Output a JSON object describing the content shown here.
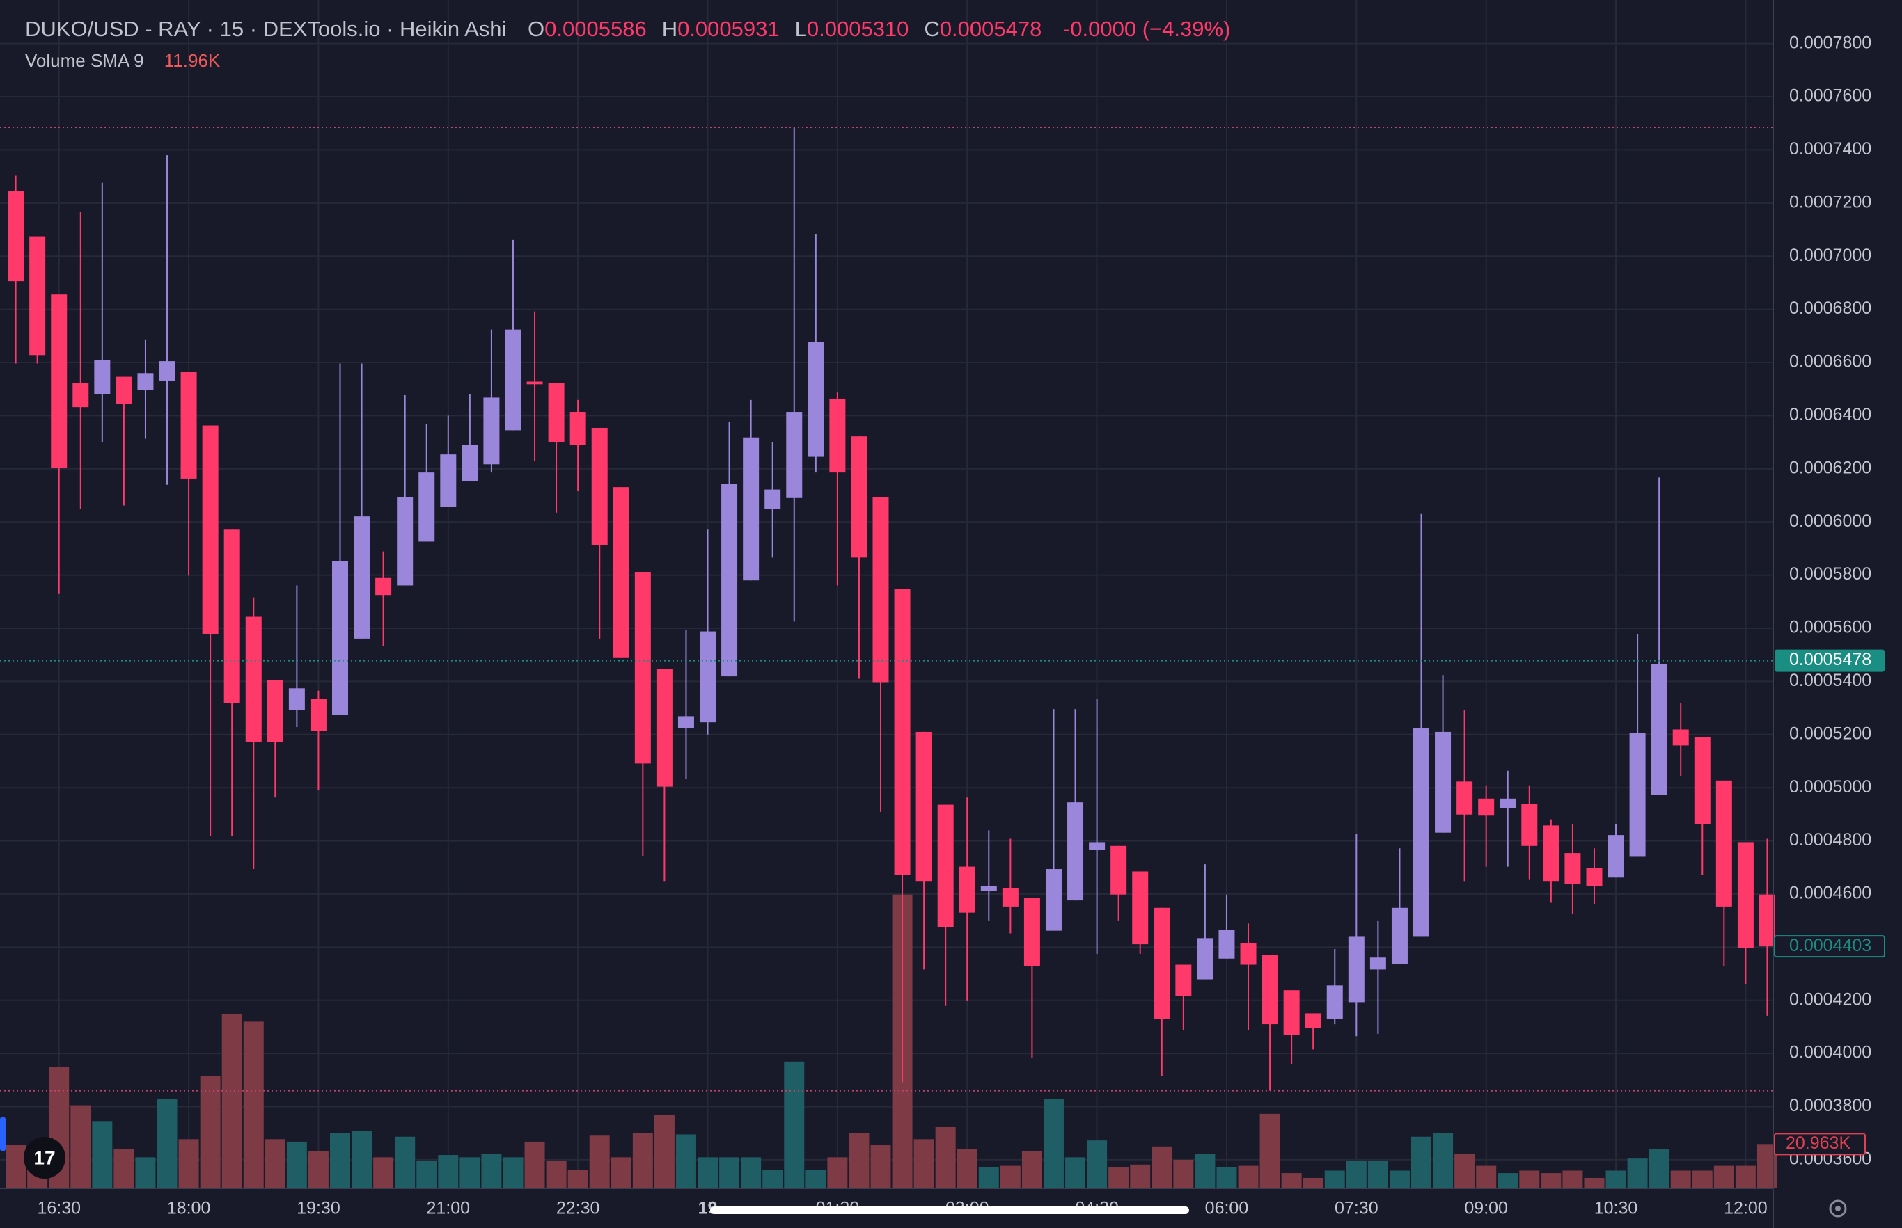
{
  "chart_data": {
    "type": "candlestick",
    "title": "DUKO/USD - RAY · 15 · DEXTools.io · Heikin Ashi",
    "ohlc_legend": [
      {
        "key": "O",
        "value": 0.0005586
      },
      {
        "key": "H",
        "value": 0.0005931
      },
      {
        "key": "L",
        "value": {
          "value": 0.000531,
          "label": "0.0005310"
        }
      },
      {
        "key": "C",
        "value": 0.0005478
      }
    ],
    "change": "-0.0000 (−4.39%)",
    "volume_sma": {
      "name": "Volume SMA 9",
      "value": {
        "value": 11.96,
        "label": "11.96K"
      }
    },
    "categories": [
      null,
      null,
      "16:30",
      null,
      null,
      null,
      null,
      null,
      "18:00",
      null,
      null,
      null,
      null,
      null,
      "19:30",
      null,
      null,
      null,
      null,
      null,
      "21:00",
      null,
      null,
      null,
      null,
      null,
      "22:30",
      null,
      null,
      null,
      null,
      null,
      "19",
      null,
      null,
      null,
      null,
      null,
      "01:30",
      null,
      null,
      null,
      null,
      null,
      "03:00",
      null,
      null,
      null,
      null,
      null,
      "04:30",
      null,
      null,
      null,
      null,
      null,
      "06:00",
      null,
      null,
      null,
      null,
      null,
      "07:30",
      null,
      null,
      null,
      null,
      null,
      "09:00",
      null,
      null,
      null,
      null,
      null,
      "10:30",
      null,
      null,
      null,
      null,
      null,
      "12:00",
      null
    ],
    "open": [
      0.0007244,
      0.0007075,
      0.0006856,
      0.0006523,
      0.0006482,
      0.0006546,
      0.0006496,
      0.0006532,
      0.0006564,
      0.0006363,
      0.0005971,
      0.0005643,
      0.0005406,
      0.0005292,
      0.0005333,
      0.0005273,
      0.0005561,
      0.0005789,
      0.0005761,
      0.0005926,
      0.0006058,
      0.0006154,
      0.0006217,
      0.0006345,
      0.0006528,
      0.0006523,
      0.0006414,
      0.0006354,
      0.0006131,
      0.0005812,
      0.0005447,
      0.0005223,
      0.0005246,
      0.0005419,
      0.000578,
      0.0006049,
      0.000609,
      0.0006245,
      0.0006464,
      0.0006322,
      0.0006094,
      0.0005748,
      0.000521,
      0.0004936,
      0.0004703,
      0.0004612,
      0.0004621,
      0.0004585,
      0.0004462,
      0.0004576,
      0.0004767,
      0.0004781,
      0.0004685,
      0.0004548,
      0.0004334,
      0.0004279,
      0.0004357,
      0.0004416,
      0.000437,
      0.0004238,
      0.0004151,
      0.0004129,
      0.0004193,
      0.0004316,
      0.0004338,
      0.0004439,
      0.0004831,
      0.0005023,
      0.0004959,
      0.0004922,
      0.000494,
      0.0004858,
      0.0004754,
      0.0004699,
      0.0004662,
      0.000474,
      0.0004972,
      0.0005219,
      0.0005191,
      0.0005027,
      0.0004795,
      0.0004598
    ],
    "high": [
      0.0007303,
      0.0007075,
      0.0006856,
      0.0007166,
      0.0007276,
      0.0006546,
      0.0006687,
      0.000738,
      0.0006564,
      0.0006363,
      0.0005971,
      0.0005716,
      0.0005406,
      0.0005761,
      0.0005365,
      0.0006596,
      0.0006596,
      0.0005889,
      0.0006477,
      0.0006368,
      0.00064,
      0.0006482,
      0.0006724,
      0.0007061,
      0.0006792,
      0.0006523,
      0.0006459,
      0.0006354,
      0.0006131,
      0.0005812,
      0.0005447,
      0.0005593,
      0.0005971,
      0.0006377,
      0.0006459,
      0.00063,
      0.0007485,
      0.0007084,
      0.0006487,
      0.0006322,
      0.0006094,
      0.0005748,
      0.000521,
      0.0004936,
      0.0004963,
      0.000484,
      0.0004808,
      0.0004585,
      0.0005296,
      0.0005296,
      0.0005333,
      0.0004781,
      0.0004685,
      0.0004548,
      0.0004334,
      0.0004712,
      0.0004598,
      0.0004489,
      0.000437,
      0.0004238,
      0.0004151,
      0.0004393,
      0.0004826,
      0.0004498,
      0.0004772,
      0.000603,
      0.0005424,
      0.0005292,
      0.0005009,
      0.0005064,
      0.0005009,
      0.0004881,
      0.0004863,
      0.0004772,
      0.0004863,
      0.0005579,
      0.0006167,
      0.0005319,
      0.0005191,
      0.0005027,
      0.0004795,
      0.0004808
    ],
    "low": [
      0.0006596,
      0.0006596,
      0.0005729,
      0.0006049,
      0.00063,
      0.0006062,
      0.0006313,
      0.000614,
      0.0005798,
      0.0004817,
      0.0004817,
      0.0004694,
      0.0004963,
      0.0005228,
      0.0004991,
      0.0005273,
      0.0005561,
      0.0005533,
      0.0005761,
      0.0005926,
      0.0006058,
      0.0006154,
      0.0006186,
      0.0006345,
      0.0006231,
      0.0006035,
      0.0006117,
      0.0005561,
      0.0005488,
      0.0004744,
      0.0004649,
      0.0005032,
      0.00052,
      0.0005419,
      0.000578,
      0.0005866,
      0.0005625,
      0.0006186,
      0.0005761,
      0.000541,
      0.0004909,
      0.0003892,
      0.0004316,
      0.0004179,
      0.0004197,
      0.0004498,
      0.0004452,
      0.0003983,
      0.0004462,
      0.0004576,
      0.0004375,
      0.0004498,
      0.0004375,
      0.0003914,
      0.0004088,
      0.0004279,
      0.0004357,
      0.0004088,
      0.000386,
      0.000396,
      0.0004015,
      0.000411,
      0.0004065,
      0.0004074,
      0.0004338,
      0.0004439,
      0.0004831,
      0.0004649,
      0.0004703,
      0.0004703,
      0.0004653,
      0.0004567,
      0.0004525,
      0.0004562,
      0.0004662,
      0.000474,
      0.0004972,
      0.0005045,
      0.0004671,
      0.000433,
      0.0004261,
      0.0004142
    ],
    "close": [
      0.0006906,
      0.0006628,
      0.0006204,
      0.0006432,
      0.000661,
      0.0006445,
      0.000656,
      0.0006605,
      0.0006163,
      0.0005579,
      0.0005319,
      0.0005173,
      0.0005173,
      0.0005374,
      0.0005214,
      0.0005853,
      0.0006021,
      0.0005725,
      0.0006094,
      0.0006186,
      0.0006254,
      0.000629,
      0.0006468,
      0.0006724,
      0.0006518,
      0.00063,
      0.000629,
      0.0005912,
      0.0005488,
      0.0005091,
      0.0005004,
      0.0005269,
      0.0005588,
      0.0006144,
      0.0006318,
      0.0006122,
      0.0006414,
      0.0006678,
      0.0006186,
      0.0005866,
      0.0005397,
      0.0004671,
      0.0004649,
      0.0004475,
      0.000453,
      0.000463,
      0.0004553,
      0.000433,
      0.0004694,
      0.0004945,
      0.0004795,
      0.0004598,
      0.0004411,
      0.0004129,
      0.0004215,
      0.0004434,
      0.0004466,
      0.0004334,
      0.000411,
      0.0004069,
      0.0004097,
      0.0004256,
      0.0004439,
      0.0004361,
      0.0004548,
      0.0005223,
      0.000521,
      0.0004899,
      0.0004895,
      0.0004959,
      0.0004781,
      0.0004649,
      0.0004639,
      0.000463,
      0.0004822,
      0.0005205,
      0.0005465,
      0.0005159,
      0.0004863,
      0.0004553,
      0.0004398,
      0.0004403
    ],
    "volume": [
      20.4,
      17.5,
      58.2,
      39.6,
      32.0,
      18.6,
      14.6,
      42.5,
      23.3,
      53.6,
      83.3,
      79.8,
      23.3,
      22.1,
      17.5,
      26.2,
      27.4,
      14.6,
      24.5,
      12.8,
      15.7,
      14.6,
      16.3,
      14.6,
      22.1,
      12.8,
      8.7,
      25.0,
      14.6,
      26.2,
      34.9,
      25.6,
      14.6,
      14.6,
      14.6,
      8.7,
      60.6,
      8.7,
      14.6,
      26.2,
      20.4,
      140.9,
      23.3,
      29.1,
      18.6,
      9.9,
      10.5,
      17.5,
      42.5,
      14.6,
      22.7,
      9.9,
      11.1,
      19.8,
      13.4,
      16.3,
      9.9,
      10.5,
      35.5,
      7.0,
      4.7,
      8.2,
      12.8,
      12.8,
      8.2,
      24.5,
      26.2,
      16.3,
      10.5,
      7.0,
      8.2,
      7.0,
      8.2,
      4.7,
      8.2,
      14.0,
      18.6,
      8.2,
      8.2,
      10.5,
      10.5,
      20.963
    ],
    "ylim": [
      0.0003495,
      0.0007964
    ],
    "yticks": [
      {
        "value": 0.00078,
        "label": "0.0007800"
      },
      {
        "value": 0.00076,
        "label": "0.0007600"
      },
      {
        "value": 0.00074,
        "label": "0.0007400"
      },
      {
        "value": 0.00072,
        "label": "0.0007200"
      },
      {
        "value": 0.0007,
        "label": "0.0007000"
      },
      {
        "value": 0.00068,
        "label": "0.0006800"
      },
      {
        "value": 0.00066,
        "label": "0.0006600"
      },
      {
        "value": 0.00064,
        "label": "0.0006400"
      },
      {
        "value": 0.00062,
        "label": "0.0006200"
      },
      {
        "value": 0.0006,
        "label": "0.0006000"
      },
      {
        "value": 0.00058,
        "label": "0.0005800"
      },
      {
        "value": 0.00056,
        "label": "0.0005600"
      },
      {
        "value": 0.00054,
        "label": "0.0005400"
      },
      {
        "value": 0.00052,
        "label": "0.0005200"
      },
      {
        "value": 0.0005,
        "label": "0.0005000"
      },
      {
        "value": 0.00048,
        "label": "0.0004800"
      },
      {
        "value": 0.00046,
        "label": "0.0004600"
      },
      {
        "value": 0.00044,
        "label": "0.0004400"
      },
      {
        "value": 0.00042,
        "label": "0.0004200"
      },
      {
        "value": 0.0004,
        "label": "0.0004000"
      },
      {
        "value": 0.00038,
        "label": "0.0003800"
      },
      {
        "value": 0.00036,
        "label": "0.0003600"
      }
    ],
    "volume_ylim": [
      0,
      141
    ],
    "grid": true,
    "up_color": "#9a86db",
    "down_color": "#ff3a6a",
    "volume_up_color": "#1f5e64",
    "volume_down_color": "#7e3a45",
    "last_price": {
      "value": 0.0005478,
      "label": "0.0005478",
      "color": "#1b8e84"
    },
    "ha_close": {
      "value": 0.0004403,
      "label": "0.0004403",
      "color": "#1b8e84"
    },
    "last_volume": {
      "value": 20.963,
      "label": "20.963K",
      "color": "#e0404f"
    }
  }
}
